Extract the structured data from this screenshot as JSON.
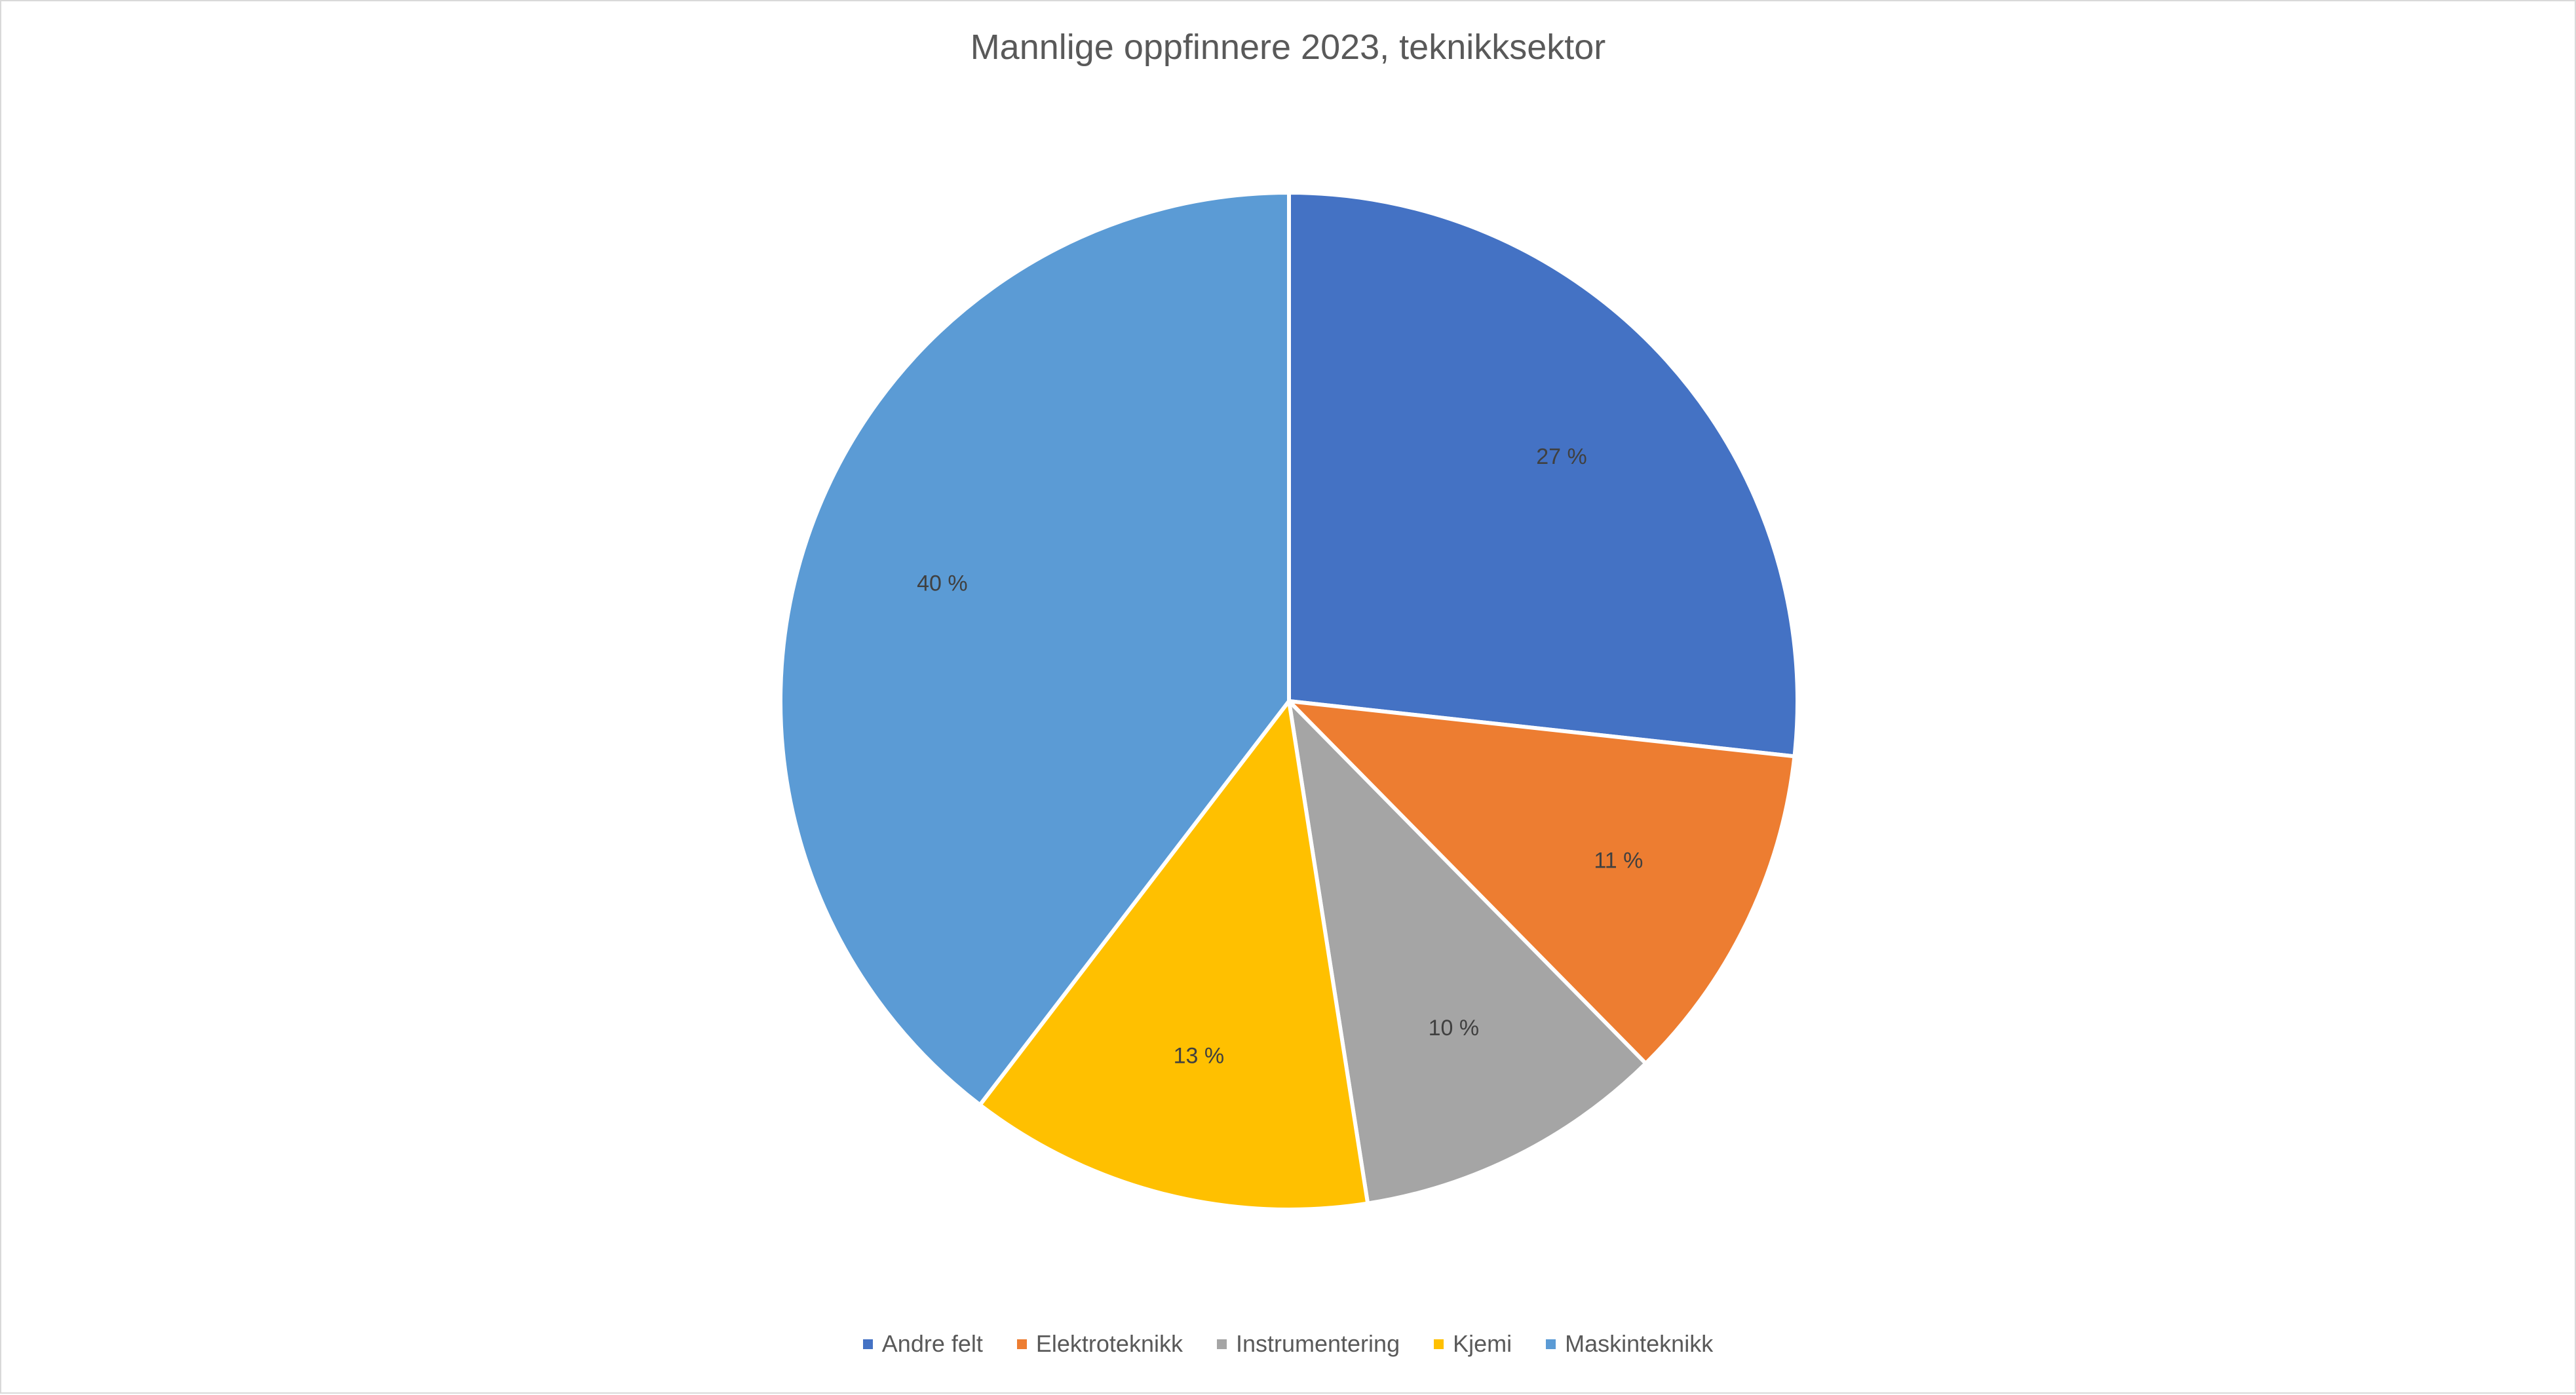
{
  "chart_data": {
    "type": "pie",
    "title": "Mannlige oppfinnere 2023, teknikksektor",
    "categories": [
      "Andre felt",
      "Elektroteknikk",
      "Instrumentering",
      "Kjemi",
      "Maskinteknikk"
    ],
    "values": [
      27,
      11,
      10,
      13,
      40
    ],
    "value_labels": [
      "27 %",
      "11 %",
      "10 %",
      "13 %",
      "40 %"
    ],
    "colors": [
      "#4472C4",
      "#ED7D31",
      "#A5A5A5",
      "#FFC000",
      "#5B9BD5"
    ],
    "legend": {
      "position": "bottom",
      "items": [
        {
          "label": "Andre felt",
          "color": "#4472C4"
        },
        {
          "label": "Elektroteknikk",
          "color": "#ED7D31"
        },
        {
          "label": "Instrumentering",
          "color": "#A5A5A5"
        },
        {
          "label": "Kjemi",
          "color": "#FFC000"
        },
        {
          "label": "Maskinteknikk",
          "color": "#5B9BD5"
        }
      ]
    }
  }
}
